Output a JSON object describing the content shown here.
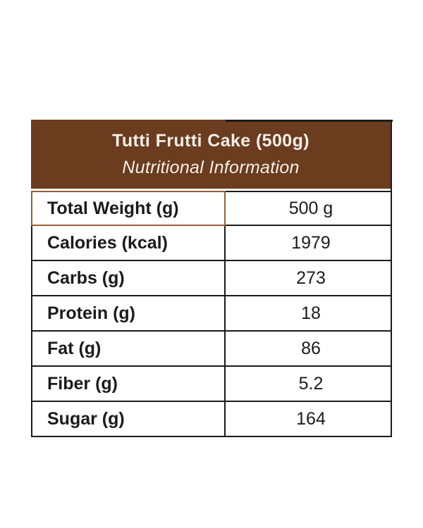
{
  "header": {
    "title": "Tutti Frutti Cake (500g)",
    "subtitle": "Nutritional Information",
    "background_color": "#6b3c1e",
    "text_color": "#f3efe9"
  },
  "table": {
    "border_color": "#1b1b1b",
    "highlight_border_color": "#9a5f33",
    "rows": [
      {
        "label": "Total Weight (g)",
        "value": "500 g"
      },
      {
        "label": "Calories (kcal)",
        "value": "1979"
      },
      {
        "label": "Carbs (g)",
        "value": "273"
      },
      {
        "label": "Protein (g)",
        "value": "18"
      },
      {
        "label": "Fat (g)",
        "value": "86"
      },
      {
        "label": "Fiber (g)",
        "value": "5.2"
      },
      {
        "label": "Sugar (g)",
        "value": "164"
      }
    ]
  }
}
